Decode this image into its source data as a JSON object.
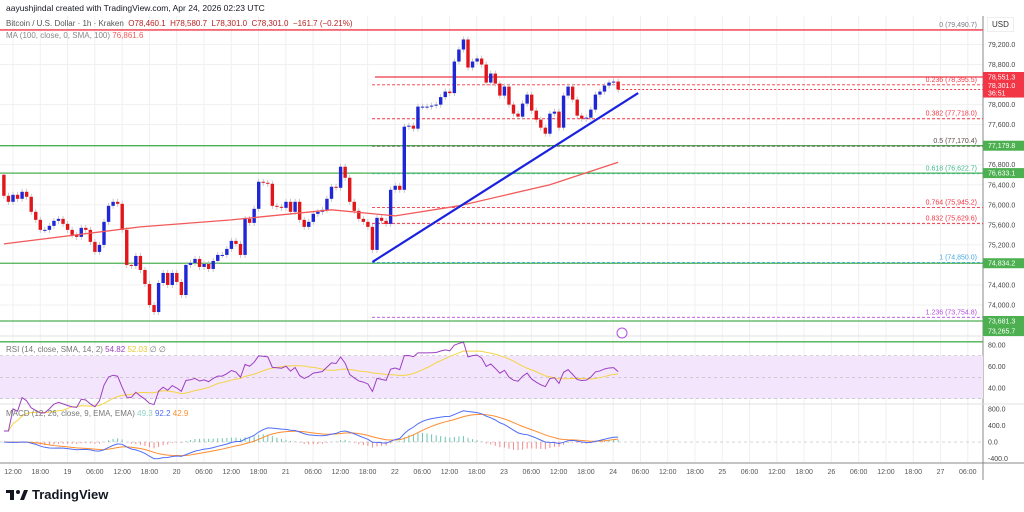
{
  "header": {
    "creator": "aayushjindal created with TradingView.com, Apr 24, 2026 02:23 UTC",
    "symbol": "Bitcoin / U.S. Dollar · 1h · Kraken",
    "open": "O78,460.1",
    "high": "H78,580.7",
    "low": "L78,301.0",
    "close": "C78,301.0",
    "change": "−161.7 (−0.21%)",
    "ma_label": "MA (100, close, 0, SMA, 100)",
    "ma_value": "76,861.6"
  },
  "currency": "USD",
  "brand": "TradingView",
  "colors": {
    "up": "#1f26d6",
    "down": "#e0161b",
    "ma": "#f25a5a",
    "trendline": "#1a22e0",
    "support": "#4caf50",
    "resistance": "#f23645",
    "rsi": "#9c3fc2",
    "rsi_sma": "#f5d443",
    "macd": "#4f6ef5",
    "signal": "#ff8c2e"
  },
  "chart_data": [
    {
      "type": "candlestick",
      "title": "Bitcoin / U.S. Dollar · 1h · Kraken",
      "first_candle_time": "Apr 18 10:00",
      "interval": "1h",
      "first_open": 76600,
      "closes": [
        76180,
        76060,
        76200,
        76120,
        76260,
        76160,
        75860,
        75700,
        75500,
        75500,
        75580,
        75680,
        75720,
        75620,
        75500,
        75400,
        75360,
        75540,
        75500,
        75260,
        75060,
        75200,
        75660,
        75980,
        76060,
        76020,
        75500,
        74800,
        74780,
        74980,
        74700,
        74420,
        74000,
        73860,
        74440,
        74640,
        74400,
        74640,
        74460,
        74200,
        74800,
        74840,
        74920,
        74760,
        74820,
        74720,
        74880,
        75000,
        75000,
        75120,
        75280,
        75220,
        75000,
        75720,
        75640,
        75920,
        76460,
        76440,
        76420,
        75980,
        75960,
        75940,
        76060,
        75860,
        76060,
        75700,
        75560,
        75660,
        75820,
        75860,
        75900,
        76120,
        76360,
        76340,
        76760,
        76540,
        76060,
        75880,
        75720,
        75660,
        75560,
        75100,
        75740,
        75680,
        75620,
        76300,
        76380,
        76300,
        77560,
        77580,
        77520,
        77960,
        77960,
        77960,
        77980,
        78000,
        78150,
        78260,
        78230,
        78860,
        79100,
        79300,
        78740,
        78860,
        78920,
        78800,
        78440,
        78620,
        78420,
        78180,
        78360,
        78000,
        77820,
        77760,
        78020,
        78200,
        77880,
        77700,
        77540,
        77420,
        77820,
        77860,
        77540,
        78180,
        78360,
        78100,
        77780,
        77720,
        77740,
        77900,
        78200,
        78260,
        78380,
        78440,
        78460,
        78301
      ],
      "ma100": [
        {
          "candle": 0,
          "value": 75220
        },
        {
          "candle": 30,
          "value": 75560
        },
        {
          "candle": 50,
          "value": 75700
        },
        {
          "candle": 72,
          "value": 75900
        },
        {
          "candle": 86,
          "value": 75780
        },
        {
          "candle": 100,
          "value": 75980
        },
        {
          "candle": 120,
          "value": 76400
        },
        {
          "candle": 135,
          "value": 76850
        }
      ],
      "trendline": {
        "start": {
          "candle": 81,
          "price": 74860
        },
        "end": {
          "candle": 139.4,
          "price": 78230
        }
      },
      "y_ticks": [
        "79,200.0",
        "78,800.0",
        "78,000.0",
        "77,600.0",
        "76,800.0",
        "76,400.0",
        "76,000.0",
        "75,600.0",
        "75,200.0",
        "74,400.0",
        "74,000.0"
      ],
      "y_tick_values": [
        79200,
        78800,
        78000,
        77600,
        76800,
        76400,
        76000,
        75600,
        75200,
        74400,
        74000
      ],
      "x_ticks": [
        "12:00",
        "18:00",
        "19",
        "06:00",
        "12:00",
        "18:00",
        "20",
        "06:00",
        "12:00",
        "18:00",
        "21",
        "06:00",
        "12:00",
        "18:00",
        "22",
        "06:00",
        "12:00",
        "18:00",
        "23",
        "06:00",
        "12:00",
        "18:00",
        "24",
        "06:00",
        "12:00",
        "18:00",
        "25",
        "06:00",
        "12:00",
        "18:00",
        "26",
        "06:00",
        "12:00",
        "18:00",
        "27",
        "06:00"
      ],
      "horizontal_lines": [
        {
          "price": 79490.7,
          "color": "#f23645",
          "style": "solid",
          "full": true
        },
        {
          "price": 78551.3,
          "color": "#f23645",
          "style": "solid",
          "full": false,
          "tag": "78,551.3"
        },
        {
          "price": 77179.8,
          "color": "#4caf50",
          "style": "solid",
          "full": true,
          "tag": "77,179.8"
        },
        {
          "price": 76633.1,
          "color": "#4caf50",
          "style": "solid",
          "full": true,
          "tag": "76,633.1"
        },
        {
          "price": 74834.2,
          "color": "#4caf50",
          "style": "solid",
          "full": true,
          "tag": "74,834.2"
        },
        {
          "price": 73681.3,
          "color": "#4caf50",
          "style": "solid",
          "full": true,
          "tag": "73,681.3"
        },
        {
          "price": 73265.7,
          "color": "#4caf50",
          "style": "solid",
          "full": true,
          "tag": "73,265.7"
        }
      ],
      "last_price_tag": {
        "price": 78301.0,
        "label": "78,301.0",
        "countdown": "36:51"
      },
      "fibonacci": [
        {
          "level": "0 (79,490.7)",
          "price": 79490.7,
          "color": "#787b86"
        },
        {
          "level": "0.236 (78,395.5)",
          "price": 78395.5,
          "color": "#f23645"
        },
        {
          "level": "0.382 (77,718.0)",
          "price": 77718.0,
          "color": "#f23645"
        },
        {
          "level": "0.5 (77,170.4)",
          "price": 77170.4,
          "color": "#5d4a4a"
        },
        {
          "level": "0.618 (76,622.7)",
          "price": 76622.7,
          "color": "#3fb98a"
        },
        {
          "level": "0.764 (75,945.2)",
          "price": 75945.2,
          "color": "#f23645"
        },
        {
          "level": "0.832 (75,629.6)",
          "price": 75629.6,
          "color": "#f23645"
        },
        {
          "level": "1 (74,850.0)",
          "price": 74850.0,
          "color": "#4aa9e0"
        },
        {
          "level": "1.236 (73,754.8)",
          "price": 73754.8,
          "color": "#b44ee0"
        }
      ]
    },
    {
      "type": "line",
      "title": "RSI (14, close, SMA, 14, 2)",
      "values_label": [
        "54.82",
        "52.03",
        "∅",
        "∅"
      ],
      "y_ticks": [
        "80.00",
        "60.00",
        "40.00"
      ],
      "band": [
        30,
        70
      ],
      "ylim": [
        20,
        85
      ]
    },
    {
      "type": "line",
      "title": "MACD (12, 26, close, 9, EMA, EMA)",
      "values_label": [
        "49.3",
        "92.2",
        "42.9"
      ],
      "y_ticks": [
        "800.0",
        "400.0",
        "0.0",
        "-400.0"
      ],
      "ylim": [
        -450,
        800
      ]
    }
  ]
}
